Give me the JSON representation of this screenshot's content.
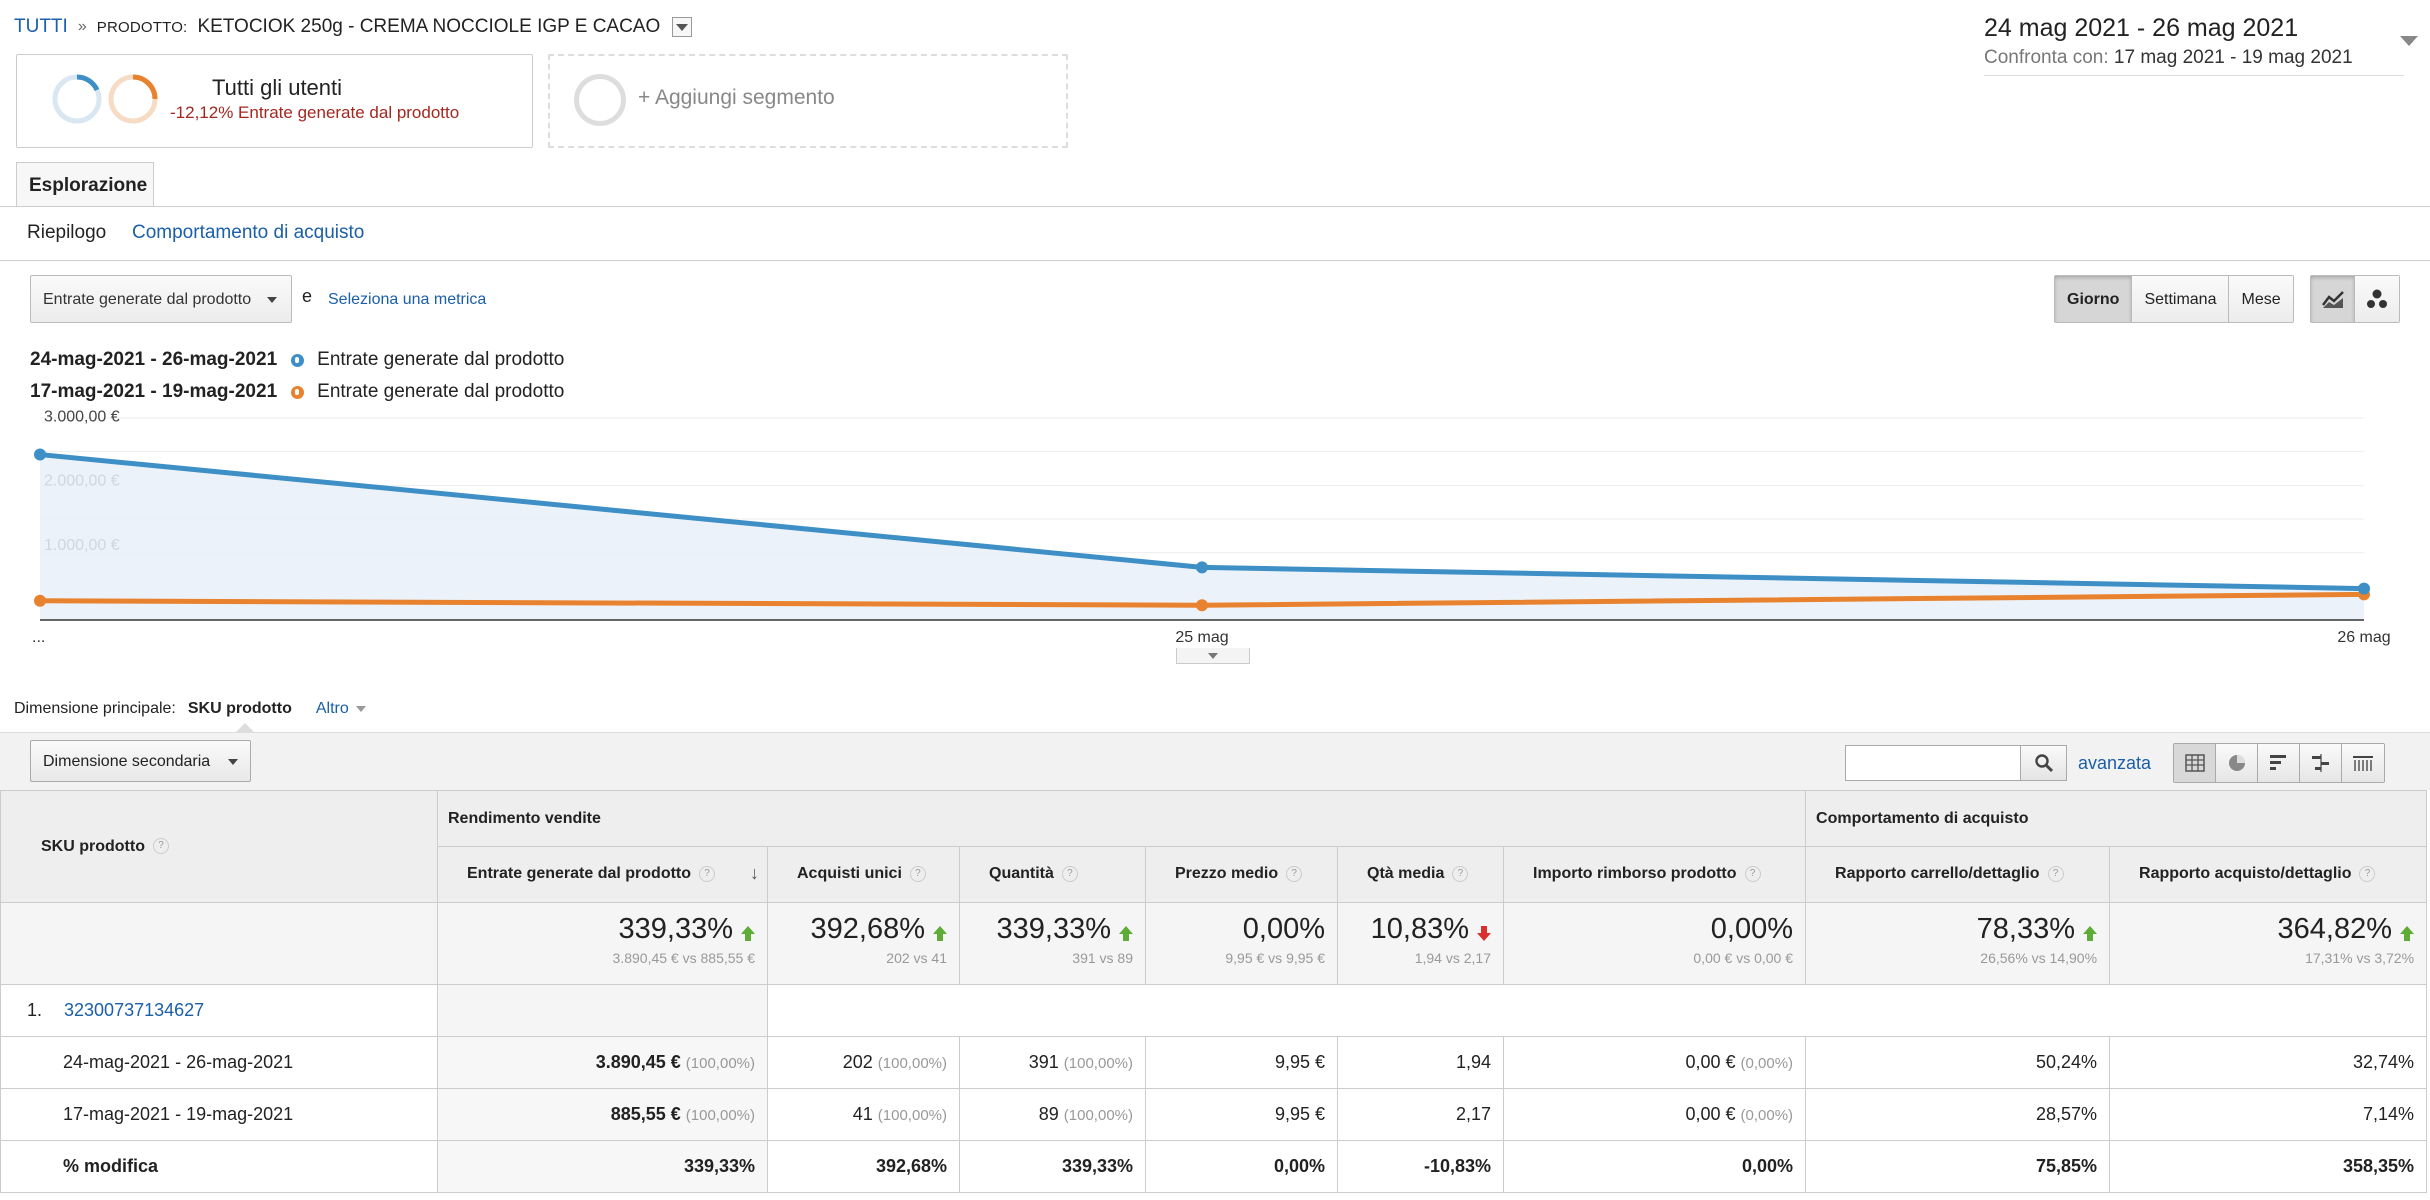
{
  "breadcrumb": {
    "root": "TUTTI",
    "sep": "»",
    "prefix": "PRODOTTO:",
    "product": "KETOCIOK 250g - CREMA NOCCIOLE IGP E CACAO"
  },
  "daterange": {
    "main": "24 mag 2021 - 26 mag 2021",
    "compare_label": "Confronta con:",
    "compare": "17 mag 2021 - 19 mag 2021"
  },
  "segments": {
    "seg1_title": "Tutti gli utenti",
    "seg1_sub": "-12,12% Entrate generate dal prodotto",
    "add_label": "+ Aggiungi segmento"
  },
  "tabs": {
    "explore": "Esplorazione",
    "summary": "Riepilogo",
    "behavior": "Comportamento di acquisto"
  },
  "chart_controls": {
    "metric": "Entrate generate dal prodotto",
    "and": "e",
    "select_metric": "Seleziona una metrica",
    "periods": [
      "Giorno",
      "Settimana",
      "Mese"
    ]
  },
  "colors": {
    "current": "#3d8fc6",
    "previous": "#e8822e",
    "area": "#e8f0f8"
  },
  "chart_data": {
    "type": "line",
    "x": [
      "...",
      "25 mag",
      "26 mag"
    ],
    "yticks": [
      "3.000,00 €",
      "2.000,00 €",
      "1.000,00 €"
    ],
    "ylim": [
      0,
      3000
    ],
    "series": [
      {
        "name": "Entrate generate dal prodotto",
        "range": "24-mag-2021 - 26-mag-2021",
        "values": [
          2580,
          820,
          490
        ]
      },
      {
        "name": "Entrate generate dal prodotto",
        "range": "17-mag-2021 - 19-mag-2021",
        "values": [
          300,
          230,
          400
        ]
      }
    ]
  },
  "dimension_bar": {
    "label": "Dimensione principale:",
    "active": "SKU prodotto",
    "other": "Altro"
  },
  "toolbar": {
    "secondary": "Dimensione secondaria",
    "search_placeholder": "",
    "advanced": "avanzata"
  },
  "table": {
    "sku_header": "SKU prodotto",
    "group_sales": "Rendimento vendite",
    "group_behavior": "Comportamento di acquisto",
    "columns": [
      "Entrate generate dal prodotto",
      "Acquisti unici",
      "Quantità",
      "Prezzo medio",
      "Qtà media",
      "Importo rimborso prodotto",
      "Rapporto carrello/dettaglio",
      "Rapporto acquisto/dettaglio"
    ],
    "totals": [
      {
        "pct": "339,33%",
        "vs": "3.890,45 € vs 885,55 €",
        "dir": "up"
      },
      {
        "pct": "392,68%",
        "vs": "202 vs 41",
        "dir": "up"
      },
      {
        "pct": "339,33%",
        "vs": "391 vs 89",
        "dir": "up"
      },
      {
        "pct": "0,00%",
        "vs": "9,95 € vs 9,95 €",
        "dir": "none"
      },
      {
        "pct": "10,83%",
        "vs": "1,94 vs 2,17",
        "dir": "down"
      },
      {
        "pct": "0,00%",
        "vs": "0,00 € vs 0,00 €",
        "dir": "none"
      },
      {
        "pct": "78,33%",
        "vs": "26,56% vs 14,90%",
        "dir": "up"
      },
      {
        "pct": "364,82%",
        "vs": "17,31% vs 3,72%",
        "dir": "up"
      }
    ],
    "sku_index": "1.",
    "sku": "32300737134627",
    "rows": [
      {
        "label": "24-mag-2021 - 26-mag-2021",
        "cells": [
          {
            "v": "3.890,45 €",
            "p": "(100,00%)",
            "bold": true
          },
          {
            "v": "202",
            "p": "(100,00%)"
          },
          {
            "v": "391",
            "p": "(100,00%)"
          },
          {
            "v": "9,95 €",
            "p": ""
          },
          {
            "v": "1,94",
            "p": ""
          },
          {
            "v": "0,00 €",
            "p": "(0,00%)"
          },
          {
            "v": "50,24%",
            "p": ""
          },
          {
            "v": "32,74%",
            "p": ""
          }
        ]
      },
      {
        "label": "17-mag-2021 - 19-mag-2021",
        "cells": [
          {
            "v": "885,55 €",
            "p": "(100,00%)",
            "bold": true
          },
          {
            "v": "41",
            "p": "(100,00%)"
          },
          {
            "v": "89",
            "p": "(100,00%)"
          },
          {
            "v": "9,95 €",
            "p": ""
          },
          {
            "v": "2,17",
            "p": ""
          },
          {
            "v": "0,00 €",
            "p": "(0,00%)"
          },
          {
            "v": "28,57%",
            "p": ""
          },
          {
            "v": "7,14%",
            "p": ""
          }
        ]
      }
    ],
    "modify": {
      "label": "% modifica",
      "cells": [
        "339,33%",
        "392,68%",
        "339,33%",
        "0,00%",
        "-10,83%",
        "0,00%",
        "75,85%",
        "358,35%"
      ]
    }
  }
}
